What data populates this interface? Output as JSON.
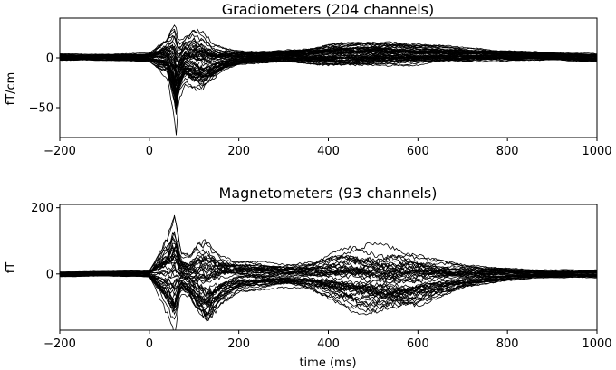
{
  "chart_data": [
    {
      "type": "line",
      "title": "Gradiometers (204 channels)",
      "xlabel": "",
      "ylabel": "fT/cm",
      "xlim": [
        -200,
        1000
      ],
      "ylim": [
        -80,
        40
      ],
      "xticks": [
        -200,
        0,
        200,
        400,
        600,
        800,
        1000
      ],
      "yticks": [
        -50,
        0
      ],
      "x_tick_labels": [
        "−200",
        "0",
        "200",
        "400",
        "600",
        "800",
        "1000"
      ],
      "y_tick_labels": [
        "−50",
        "0"
      ],
      "line_color": "#000000",
      "channel_count": 204,
      "envelope": {
        "x": [
          -200,
          -100,
          0,
          40,
          55,
          60,
          65,
          80,
          100,
          120,
          140,
          170,
          200,
          250,
          300,
          350,
          400,
          450,
          500,
          550,
          600,
          650,
          700,
          750,
          800,
          850,
          900,
          950,
          1000
        ],
        "upper": [
          4,
          4,
          5,
          20,
          35,
          30,
          15,
          22,
          28,
          26,
          15,
          10,
          8,
          7,
          8,
          10,
          13,
          15,
          16,
          15,
          13,
          12,
          10,
          9,
          8,
          7,
          6,
          5,
          5
        ],
        "lower": [
          -3,
          -3,
          -4,
          -20,
          -55,
          -75,
          -45,
          -30,
          -38,
          -40,
          -28,
          -15,
          -9,
          -6,
          -5,
          -6,
          -8,
          -9,
          -9,
          -8,
          -7,
          -6,
          -5,
          -4,
          -4,
          -3,
          -3,
          -4,
          -5
        ]
      }
    },
    {
      "type": "line",
      "title": "Magnetometers (93 channels)",
      "xlabel": "time (ms)",
      "ylabel": "fT",
      "xlim": [
        -200,
        1000
      ],
      "ylim": [
        -170,
        210
      ],
      "xticks": [
        -200,
        0,
        200,
        400,
        600,
        800,
        1000
      ],
      "yticks": [
        0,
        200
      ],
      "x_tick_labels": [
        "−200",
        "0",
        "200",
        "400",
        "600",
        "800",
        "1000"
      ],
      "y_tick_labels": [
        "0",
        "200"
      ],
      "line_color": "#000000",
      "channel_count": 93,
      "envelope": {
        "x": [
          -200,
          -100,
          0,
          40,
          55,
          60,
          70,
          90,
          110,
          130,
          160,
          200,
          250,
          300,
          350,
          400,
          450,
          500,
          550,
          600,
          650,
          700,
          750,
          800,
          850,
          900,
          950,
          1000
        ],
        "upper": [
          8,
          8,
          10,
          120,
          190,
          170,
          70,
          60,
          100,
          110,
          70,
          45,
          35,
          30,
          40,
          60,
          75,
          80,
          75,
          60,
          45,
          30,
          22,
          18,
          15,
          12,
          12,
          15
        ],
        "lower": [
          -8,
          -8,
          -10,
          -110,
          -170,
          -150,
          -60,
          -80,
          -140,
          -170,
          -100,
          -55,
          -45,
          -40,
          -50,
          -80,
          -110,
          -120,
          -115,
          -100,
          -70,
          -45,
          -30,
          -20,
          -15,
          -12,
          -12,
          -15
        ]
      }
    }
  ]
}
